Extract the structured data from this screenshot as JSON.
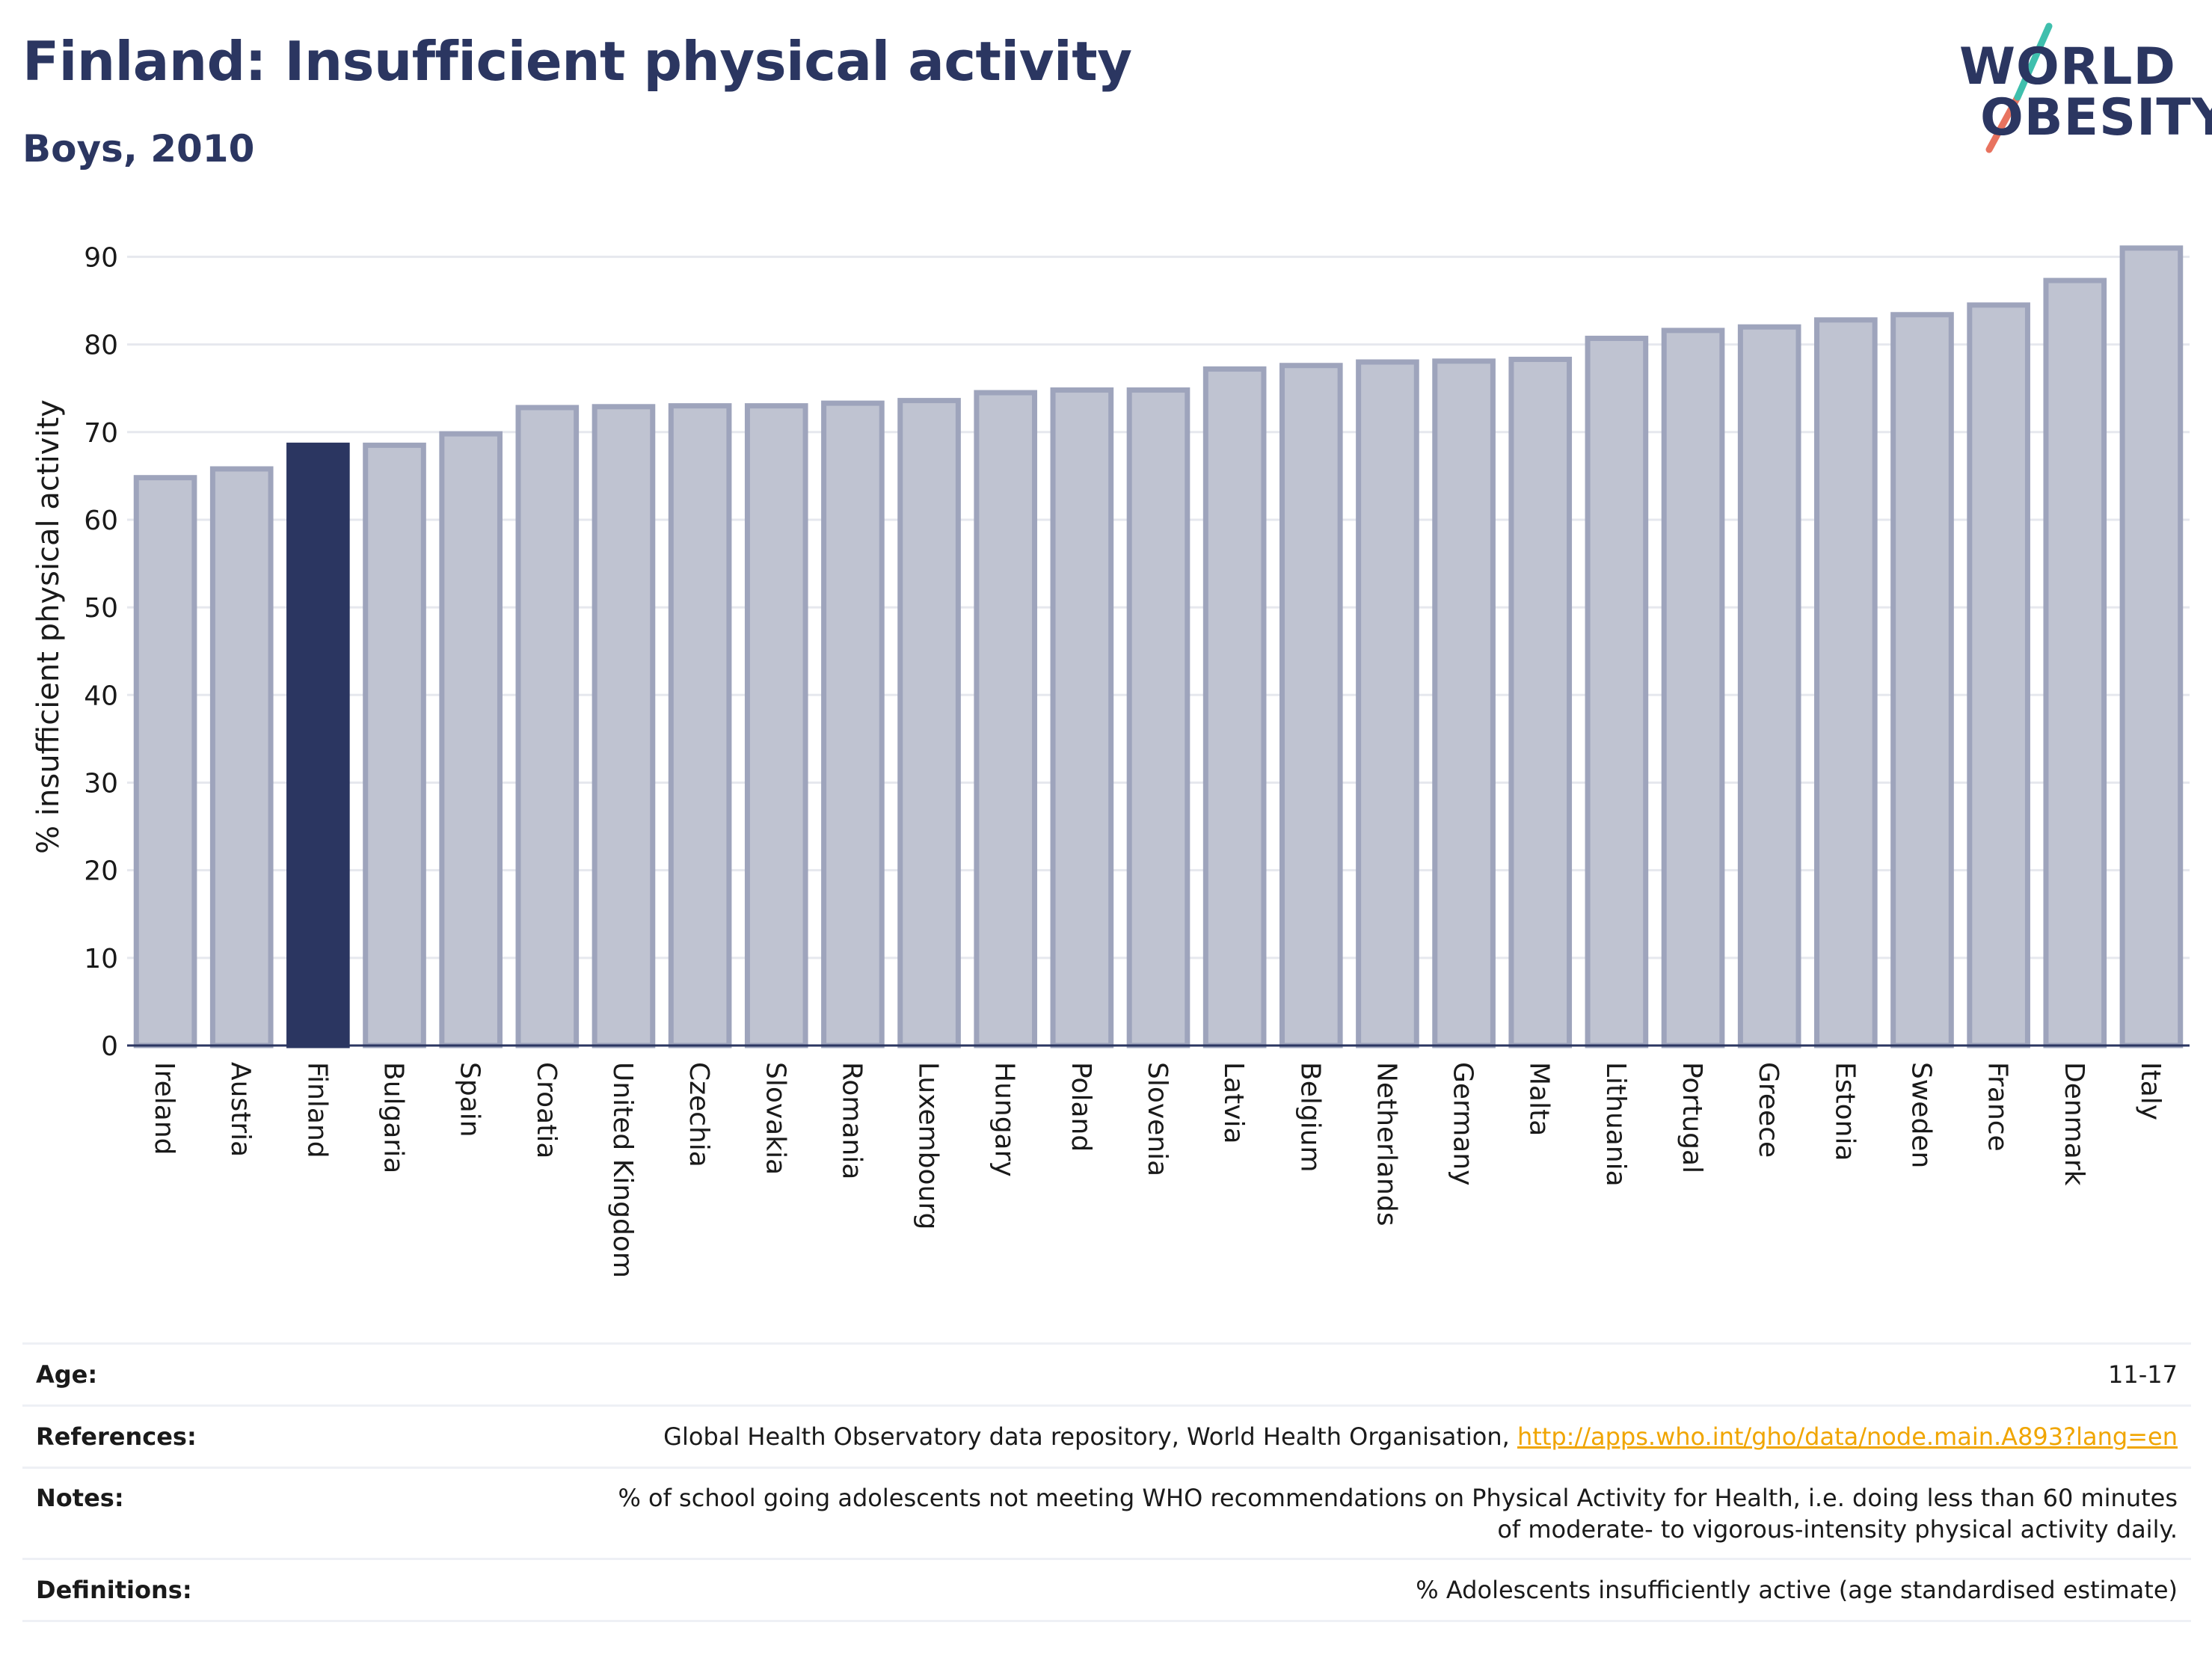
{
  "header": {
    "title": "Finland: Insufficient physical activity",
    "subtitle": "Boys, 2010"
  },
  "logo": {
    "line1": "WORLD",
    "line2": "OBESITY",
    "colors": {
      "text": "#2b3661",
      "slash_top": "#3fbfad",
      "slash_bottom": "#e8735f"
    }
  },
  "chart_data": {
    "type": "bar",
    "ylabel": "% insufficient physical activity",
    "ylim": [
      0,
      92
    ],
    "yticks": [
      0,
      10,
      20,
      30,
      40,
      50,
      60,
      70,
      80,
      90
    ],
    "grid": true,
    "highlight": "Finland",
    "colors": {
      "bar": "#bfc3d1",
      "bar_border": "#9ea4bc",
      "highlight": "#2b3661",
      "axis": "#2b3661",
      "grid": "#e6e8ee",
      "text": "#1a1a1a"
    },
    "categories": [
      "Ireland",
      "Austria",
      "Finland",
      "Bulgaria",
      "Spain",
      "Croatia",
      "United Kingdom",
      "Czechia",
      "Slovakia",
      "Romania",
      "Luxembourg",
      "Hungary",
      "Poland",
      "Slovenia",
      "Latvia",
      "Belgium",
      "Netherlands",
      "Germany",
      "Malta",
      "Lithuania",
      "Portugal",
      "Greece",
      "Estonia",
      "Sweden",
      "France",
      "Denmark",
      "Italy"
    ],
    "values": [
      64.8,
      65.8,
      68.5,
      68.5,
      69.8,
      72.8,
      72.9,
      73.0,
      73.0,
      73.3,
      73.6,
      74.5,
      74.8,
      74.8,
      77.2,
      77.6,
      78.0,
      78.1,
      78.3,
      80.7,
      81.6,
      82.0,
      82.8,
      83.4,
      84.5,
      87.3,
      91.0
    ]
  },
  "info": {
    "age_label": "Age:",
    "age_value": "11-17",
    "references_label": "References:",
    "references_text": "Global Health Observatory data repository, World Health Organisation, ",
    "references_link": "http://apps.who.int/gho/data/node.main.A893?lang=en",
    "notes_label": "Notes:",
    "notes_text": "% of school going adolescents not meeting WHO recommendations on Physical Activity for Health, i.e. doing less than 60 minutes of moderate- to vigorous-intensity physical activity daily.",
    "definitions_label": "Definitions:",
    "definitions_text": "% Adolescents insufficiently active (age standardised estimate)"
  }
}
